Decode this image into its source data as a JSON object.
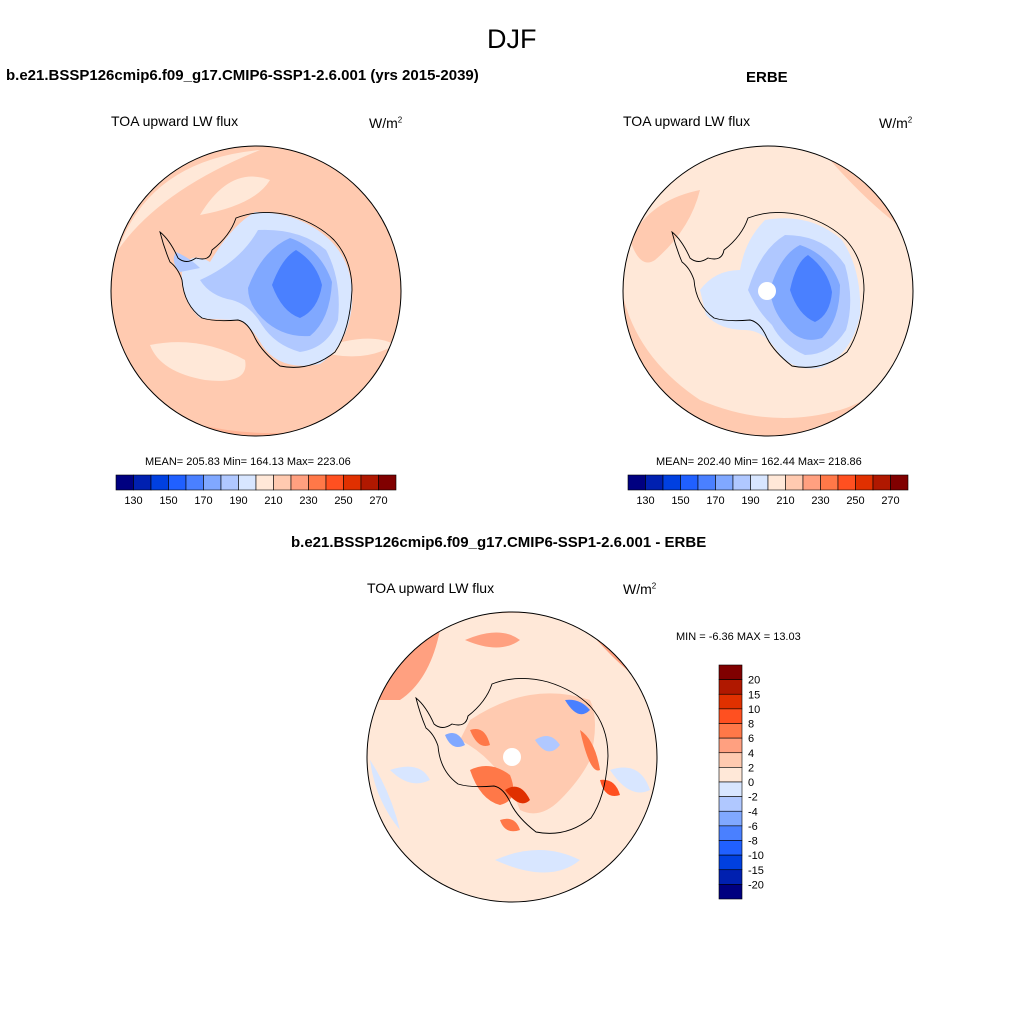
{
  "figure": {
    "season": "DJF",
    "units_base": "W/m",
    "units_exp": "2"
  },
  "panels": {
    "model": {
      "title": "b.e21.BSSP126cmip6.f09_g17.CMIP6-SSP1-2.6.001 (yrs 2015-2039)",
      "variable": "TOA upward LW flux",
      "stats_label": "MEAN= 205.83  Min= 164.13  Max= 223.06"
    },
    "obs": {
      "title": "ERBE",
      "variable": "TOA upward LW flux",
      "stats_label": "MEAN= 202.40  Min= 162.44  Max= 218.86"
    },
    "diff": {
      "title": "b.e21.BSSP126cmip6.f09_g17.CMIP6-SSP1-2.6.001 - ERBE",
      "variable": "TOA upward LW flux",
      "stats_label": "MIN =  -6.36 MAX =  13.03"
    }
  },
  "chart_data": [
    {
      "type": "heatmap",
      "projection": "south polar stereographic",
      "title": "b.e21.BSSP126cmip6.f09_g17.CMIP6-SSP1-2.6.001 (yrs 2015-2039)",
      "variable": "TOA upward LW flux",
      "units": "W/m2",
      "mean": 205.83,
      "min": 164.13,
      "max": 223.06,
      "colorbar": {
        "orientation": "horizontal",
        "levels": [
          130,
          140,
          150,
          160,
          170,
          180,
          190,
          200,
          210,
          220,
          230,
          240,
          250,
          260,
          270
        ],
        "tick_labels": [
          "130",
          "150",
          "170",
          "190",
          "210",
          "230",
          "250",
          "270"
        ],
        "colors": [
          "#000080",
          "#0020b0",
          "#0040e0",
          "#2060ff",
          "#4a80ff",
          "#80a8ff",
          "#b0c8ff",
          "#d8e6ff",
          "#ffe8d8",
          "#ffcab0",
          "#ffa080",
          "#ff7848",
          "#ff5020",
          "#e03000",
          "#b01800",
          "#800000"
        ]
      }
    },
    {
      "type": "heatmap",
      "projection": "south polar stereographic",
      "title": "ERBE",
      "variable": "TOA upward LW flux",
      "units": "W/m2",
      "mean": 202.4,
      "min": 162.44,
      "max": 218.86,
      "colorbar": {
        "orientation": "horizontal",
        "levels": [
          130,
          140,
          150,
          160,
          170,
          180,
          190,
          200,
          210,
          220,
          230,
          240,
          250,
          260,
          270
        ],
        "tick_labels": [
          "130",
          "150",
          "170",
          "190",
          "210",
          "230",
          "250",
          "270"
        ],
        "colors": [
          "#000080",
          "#0020b0",
          "#0040e0",
          "#2060ff",
          "#4a80ff",
          "#80a8ff",
          "#b0c8ff",
          "#d8e6ff",
          "#ffe8d8",
          "#ffcab0",
          "#ffa080",
          "#ff7848",
          "#ff5020",
          "#e03000",
          "#b01800",
          "#800000"
        ]
      }
    },
    {
      "type": "heatmap",
      "projection": "south polar stereographic",
      "title": "b.e21.BSSP126cmip6.f09_g17.CMIP6-SSP1-2.6.001 - ERBE",
      "variable": "TOA upward LW flux",
      "units": "W/m2",
      "min": -6.36,
      "max": 13.03,
      "colorbar": {
        "orientation": "vertical",
        "levels": [
          -20,
          -15,
          -10,
          -8,
          -6,
          -4,
          -2,
          0,
          2,
          4,
          6,
          8,
          10,
          15,
          20
        ],
        "tick_labels": [
          "-20",
          "-15",
          "-10",
          "-8",
          "-6",
          "-4",
          "-2",
          "0",
          "2",
          "4",
          "6",
          "8",
          "10",
          "15",
          "20"
        ],
        "colors": [
          "#000080",
          "#0020b0",
          "#0040e0",
          "#2060ff",
          "#4a80ff",
          "#80a8ff",
          "#b0c8ff",
          "#d8e6ff",
          "#ffe8d8",
          "#ffcab0",
          "#ffa080",
          "#ff7848",
          "#ff5020",
          "#e03000",
          "#b01800",
          "#800000"
        ]
      }
    }
  ]
}
